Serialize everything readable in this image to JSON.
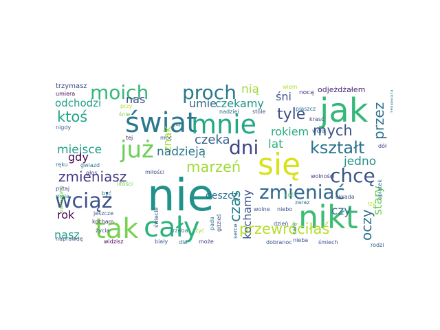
{
  "words": [
    {
      "text": "nie",
      "color": "#21918c"
    },
    {
      "text": "świat",
      "color": "#2a788e"
    },
    {
      "text": "mnie",
      "color": "#22a884"
    },
    {
      "text": "jak",
      "color": "#35b779"
    },
    {
      "text": "się",
      "color": "#d8e219"
    },
    {
      "text": "tak",
      "color": "#7ad151"
    },
    {
      "text": "cały",
      "color": "#2db27d"
    },
    {
      "text": "nikt",
      "color": "#3fbc73"
    },
    {
      "text": "już",
      "color": "#6ece58"
    },
    {
      "text": "moich",
      "color": "#35b779"
    },
    {
      "text": "proch",
      "color": "#2a788e"
    },
    {
      "text": "zmieniać",
      "color": "#31688e"
    },
    {
      "text": "wciąż",
      "color": "#3b528b"
    },
    {
      "text": "dni",
      "color": "#414487"
    },
    {
      "text": "kształt",
      "color": "#2c728e"
    },
    {
      "text": "chcę",
      "color": "#3b528b"
    },
    {
      "text": "zmieniasz",
      "color": "#443983"
    },
    {
      "text": "przewróciłaś",
      "color": "#b5de2b"
    },
    {
      "text": "marzeń",
      "color": "#a2da37"
    },
    {
      "text": "ktoś",
      "color": "#21a585"
    },
    {
      "text": "mych",
      "color": "#3b528b"
    },
    {
      "text": "miejsce",
      "color": "#1fa088"
    },
    {
      "text": "czas",
      "color": "#26828e"
    },
    {
      "text": "oczy",
      "color": "#2c728e"
    },
    {
      "text": "przez",
      "color": "#2c728e"
    },
    {
      "text": "tyle",
      "color": "#3b528b"
    },
    {
      "text": "rokiem",
      "color": "#27ad81"
    },
    {
      "text": "umie",
      "color": "#31688e"
    },
    {
      "text": "czekamy",
      "color": "#20928c"
    },
    {
      "text": "nią",
      "color": "#9fda3a"
    },
    {
      "text": "nas",
      "color": "#3e4989"
    },
    {
      "text": "odchodzi",
      "color": "#1f9f88"
    },
    {
      "text": "śni",
      "color": "#38598c"
    },
    {
      "text": "znak",
      "color": "#a5db36"
    },
    {
      "text": "czeka",
      "color": "#355f8d"
    },
    {
      "text": "nadzieją",
      "color": "#2a788e"
    },
    {
      "text": "lat",
      "color": "#2db27d"
    },
    {
      "text": "jedno",
      "color": "#21918c"
    },
    {
      "text": "gdy",
      "color": "#440154"
    },
    {
      "text": "rok",
      "color": "#440154"
    },
    {
      "text": "nasz",
      "color": "#20a386"
    },
    {
      "text": "kochamy",
      "color": "#3b528b"
    },
    {
      "text": "czy",
      "color": "#31688e"
    },
    {
      "text": "stary",
      "color": "#6ece58"
    },
    {
      "text": "deszcz",
      "color": "#2c728e"
    },
    {
      "text": "odjeżdżałem",
      "color": "#482878"
    },
    {
      "text": "trzymasz",
      "color": "#3e4989"
    },
    {
      "text": "umiera",
      "color": "#440154"
    },
    {
      "text": "wiem",
      "color": "#b5de2b"
    },
    {
      "text": "nocą",
      "color": "#46327e"
    },
    {
      "text": "płaszcz",
      "color": "#2c728e"
    },
    {
      "text": "krasć",
      "color": "#414487"
    },
    {
      "text": "woła",
      "color": "#31688e"
    },
    {
      "text": "dół",
      "color": "#414487"
    },
    {
      "text": "nigdy",
      "color": "#355f8d"
    },
    {
      "text": "tej",
      "color": "#481a6c"
    },
    {
      "text": "jej",
      "color": "#2a788e"
    },
    {
      "text": "nadziei",
      "color": "#31688e"
    },
    {
      "text": "stole",
      "color": "#3b528b"
    },
    {
      "text": "ręku",
      "color": "#2c728e"
    },
    {
      "text": "gwiazd",
      "color": "#2a788e"
    },
    {
      "text": "głos",
      "color": "#433e85"
    },
    {
      "text": "pytaj",
      "color": "#414487"
    },
    {
      "text": "moja",
      "color": "#21918c"
    },
    {
      "text": "być",
      "color": "#2c728e"
    },
    {
      "text": "litości",
      "color": "#6ece58"
    },
    {
      "text": "miłości",
      "color": "#3b528b"
    },
    {
      "text": "wolności",
      "color": "#46327e"
    },
    {
      "text": "zamykam",
      "color": "#7ad151"
    },
    {
      "text": "jeszcze",
      "color": "#3b528b"
    },
    {
      "text": "kocham",
      "color": "#482878"
    },
    {
      "text": "życia",
      "color": "#3b528b"
    },
    {
      "text": "naprawdę",
      "color": "#3b528b"
    },
    {
      "text": "widzisz",
      "color": "#440154"
    },
    {
      "text": "biały",
      "color": "#3b528b"
    },
    {
      "text": "dla",
      "color": "#31688e"
    },
    {
      "text": "może",
      "color": "#433e85"
    },
    {
      "text": "dzień",
      "color": "#3b528b"
    },
    {
      "text": "dobranoc",
      "color": "#3b528b"
    },
    {
      "text": "śmiech",
      "color": "#3b528b"
    },
    {
      "text": "nieba",
      "color": "#3b528b"
    },
    {
      "text": "rodzi",
      "color": "#38598c"
    },
    {
      "text": "coś",
      "color": "#5ec962"
    },
    {
      "text": "łzy",
      "color": "#b5de2b"
    },
    {
      "text": "okrada",
      "color": "#3b528b"
    },
    {
      "text": "opłatek",
      "color": "#2c728e"
    },
    {
      "text": "zniewala",
      "color": "#2a788e"
    },
    {
      "text": "wolne",
      "color": "#3b528b"
    },
    {
      "text": "niebo",
      "color": "#3b528b"
    },
    {
      "text": "zaraz",
      "color": "#2c728e"
    },
    {
      "text": "trzeba",
      "color": "#2c728e"
    },
    {
      "text": "żyć",
      "color": "#9fda3a"
    },
    {
      "text": "świecie",
      "color": "#3b528b"
    },
    {
      "text": "pada",
      "color": "#2c728e"
    },
    {
      "text": "gdzieś",
      "color": "#3b528b"
    },
    {
      "text": "serce",
      "color": "#31688e"
    },
    {
      "text": "całą",
      "color": "#2a788e"
    },
    {
      "text": "moc",
      "color": "#3b528b"
    },
    {
      "text": "przy",
      "color": "#b5de2b"
    },
    {
      "text": "śnie",
      "color": "#7ad151"
    }
  ]
}
